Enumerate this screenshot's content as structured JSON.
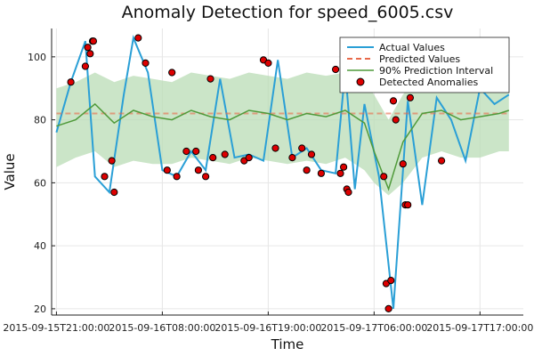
{
  "chart_data": {
    "type": "line",
    "title": "Anomaly Detection for speed_6005.csv",
    "xlabel": "Time",
    "ylabel": "Value",
    "x_range": [
      "2015-09-15T20:30:00",
      "2015-09-17T21:30:00"
    ],
    "ylim": [
      18,
      109
    ],
    "x_ticks": [
      "2015-09-15T21:00:00",
      "2015-09-16T08:00:00",
      "2015-09-16T19:00:00",
      "2015-09-17T06:00:00",
      "2015-09-17T17:00:00"
    ],
    "x_tick_labels": [
      "2015-09-15T21:00:00",
      "2015-09-16T08:00:00",
      "2015-09-16T19:00:00",
      "2015-09-17T06:00:00",
      "2015-09-17T17:00:00"
    ],
    "y_ticks": [
      20,
      40,
      60,
      80,
      100
    ],
    "grid": true,
    "legend_position": "top-right",
    "series": [
      {
        "name": "Actual Values",
        "color": "#2a9fd6",
        "x": [
          "2015-09-15T21:00:00",
          "2015-09-15T22:30:00",
          "2015-09-16T00:00:00",
          "2015-09-16T01:00:00",
          "2015-09-16T02:30:00",
          "2015-09-16T04:00:00",
          "2015-09-16T05:00:00",
          "2015-09-16T06:30:00",
          "2015-09-16T08:00:00",
          "2015-09-16T09:30:00",
          "2015-09-16T11:00:00",
          "2015-09-16T12:30:00",
          "2015-09-16T14:00:00",
          "2015-09-16T15:30:00",
          "2015-09-16T17:00:00",
          "2015-09-16T18:30:00",
          "2015-09-16T20:00:00",
          "2015-09-16T21:30:00",
          "2015-09-16T23:00:00",
          "2015-09-17T00:30:00",
          "2015-09-17T02:00:00",
          "2015-09-17T03:00:00",
          "2015-09-17T04:00:00",
          "2015-09-17T05:00:00",
          "2015-09-17T06:30:00",
          "2015-09-17T08:00:00",
          "2015-09-17T09:30:00",
          "2015-09-17T11:00:00",
          "2015-09-17T12:30:00",
          "2015-09-17T14:00:00",
          "2015-09-17T15:30:00",
          "2015-09-17T17:00:00",
          "2015-09-17T18:30:00",
          "2015-09-17T20:00:00"
        ],
        "y": [
          76,
          92,
          105,
          62,
          57,
          88,
          106,
          95,
          64,
          62,
          70,
          64,
          93,
          68,
          69,
          67,
          99,
          68,
          71,
          64,
          63,
          96,
          58,
          85,
          62,
          20,
          86,
          53,
          87,
          80,
          67,
          90,
          85,
          88
        ]
      },
      {
        "name": "Predicted Values",
        "color": "#e8694a",
        "dash": true,
        "x": [
          "2015-09-15T21:00:00",
          "2015-09-17T20:00:00"
        ],
        "y": [
          82,
          82
        ]
      },
      {
        "name": "90% Prediction Interval",
        "color": "#4f9a3a",
        "x": [
          "2015-09-15T21:00:00",
          "2015-09-15T23:00:00",
          "2015-09-16T01:00:00",
          "2015-09-16T03:00:00",
          "2015-09-16T05:00:00",
          "2015-09-16T07:00:00",
          "2015-09-16T09:00:00",
          "2015-09-16T11:00:00",
          "2015-09-16T13:00:00",
          "2015-09-16T15:00:00",
          "2015-09-16T17:00:00",
          "2015-09-16T19:00:00",
          "2015-09-16T21:00:00",
          "2015-09-16T23:00:00",
          "2015-09-17T01:00:00",
          "2015-09-17T03:00:00",
          "2015-09-17T05:00:00",
          "2015-09-17T06:00:00",
          "2015-09-17T07:30:00",
          "2015-09-17T09:00:00",
          "2015-09-17T11:00:00",
          "2015-09-17T13:00:00",
          "2015-09-17T15:00:00",
          "2015-09-17T17:00:00",
          "2015-09-17T19:00:00",
          "2015-09-17T20:00:00"
        ],
        "y": [
          78,
          80,
          85,
          79,
          83,
          81,
          80,
          83,
          81,
          80,
          83,
          82,
          80,
          82,
          81,
          83,
          79,
          70,
          58,
          73,
          82,
          83,
          80,
          81,
          82,
          83
        ],
        "lower": [
          65,
          68,
          70,
          65,
          67,
          66,
          66,
          68,
          67,
          66,
          68,
          67,
          66,
          67,
          66,
          68,
          64,
          60,
          56,
          60,
          68,
          70,
          68,
          68,
          70,
          70
        ],
        "upper": [
          90,
          92,
          95,
          92,
          94,
          93,
          92,
          95,
          94,
          93,
          95,
          94,
          93,
          95,
          94,
          95,
          92,
          88,
          80,
          88,
          95,
          96,
          94,
          94,
          96,
          96
        ]
      },
      {
        "name": "Detected Anomalies",
        "color": "#dd0000",
        "type": "scatter",
        "x": [
          "2015-09-15T22:30:00",
          "2015-09-16T00:00:00",
          "2015-09-16T00:15:00",
          "2015-09-16T00:30:00",
          "2015-09-16T00:45:00",
          "2015-09-16T00:50:00",
          "2015-09-16T02:00:00",
          "2015-09-16T02:45:00",
          "2015-09-16T03:00:00",
          "2015-09-16T05:30:00",
          "2015-09-16T06:15:00",
          "2015-09-16T08:30:00",
          "2015-09-16T09:00:00",
          "2015-09-16T09:30:00",
          "2015-09-16T10:30:00",
          "2015-09-16T11:30:00",
          "2015-09-16T11:45:00",
          "2015-09-16T12:30:00",
          "2015-09-16T13:00:00",
          "2015-09-16T13:15:00",
          "2015-09-16T14:30:00",
          "2015-09-16T16:30:00",
          "2015-09-16T17:00:00",
          "2015-09-16T18:30:00",
          "2015-09-16T19:00:00",
          "2015-09-16T19:45:00",
          "2015-09-16T21:30:00",
          "2015-09-16T22:30:00",
          "2015-09-16T23:00:00",
          "2015-09-16T23:30:00",
          "2015-09-17T00:30:00",
          "2015-09-17T02:00:00",
          "2015-09-17T02:30:00",
          "2015-09-17T02:50:00",
          "2015-09-17T03:10:00",
          "2015-09-17T03:20:00",
          "2015-09-17T07:00:00",
          "2015-09-17T07:15:00",
          "2015-09-17T07:30:00",
          "2015-09-17T07:45:00",
          "2015-09-17T08:00:00",
          "2015-09-17T08:15:00",
          "2015-09-17T09:00:00",
          "2015-09-17T09:15:00",
          "2015-09-17T09:30:00",
          "2015-09-17T09:45:00",
          "2015-09-17T13:00:00"
        ],
        "y": [
          92,
          97,
          103,
          101,
          105,
          105,
          62,
          67,
          57,
          106,
          98,
          64,
          95,
          62,
          70,
          70,
          64,
          62,
          93,
          68,
          69,
          67,
          68,
          99,
          98,
          71,
          68,
          71,
          64,
          69,
          63,
          96,
          63,
          65,
          58,
          57,
          62,
          28,
          20,
          29,
          86,
          80,
          66,
          53,
          53,
          87,
          67
        ]
      }
    ],
    "legend": [
      {
        "label": "Actual Values"
      },
      {
        "label": "Predicted Values"
      },
      {
        "label": "90% Prediction Interval"
      },
      {
        "label": "Detected Anomalies"
      }
    ]
  }
}
